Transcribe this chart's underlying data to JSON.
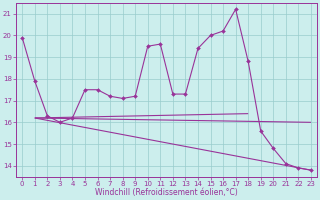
{
  "xlabel": "Windchill (Refroidissement éolien,°C)",
  "bg_color": "#cceeed",
  "line_color": "#993399",
  "grid_color": "#99cccc",
  "xlim": [
    -0.5,
    23.5
  ],
  "ylim": [
    13.5,
    21.5
  ],
  "yticks": [
    14,
    15,
    16,
    17,
    18,
    19,
    20,
    21
  ],
  "xticks": [
    0,
    1,
    2,
    3,
    4,
    5,
    6,
    7,
    8,
    9,
    10,
    11,
    12,
    13,
    14,
    15,
    16,
    17,
    18,
    19,
    20,
    21,
    22,
    23
  ],
  "main_series": {
    "x": [
      0,
      1,
      2,
      3,
      4,
      5,
      6,
      7,
      8,
      9,
      10,
      11,
      12,
      13,
      14,
      15,
      16,
      17,
      18,
      19,
      20,
      21,
      22,
      23
    ],
    "y": [
      19.9,
      17.9,
      16.3,
      16.0,
      16.2,
      17.5,
      17.5,
      17.2,
      17.1,
      17.2,
      19.5,
      19.6,
      17.3,
      17.3,
      19.4,
      20.0,
      20.2,
      21.2,
      18.8,
      15.6,
      14.8,
      14.1,
      13.9,
      13.8
    ]
  },
  "trend_lines": [
    {
      "x": [
        1,
        18
      ],
      "y": [
        16.2,
        16.4
      ]
    },
    {
      "x": [
        1,
        23
      ],
      "y": [
        16.2,
        16.0
      ]
    },
    {
      "x": [
        1,
        23
      ],
      "y": [
        16.2,
        13.8
      ]
    }
  ],
  "tick_fontsize": 5.0,
  "xlabel_fontsize": 5.5,
  "tick_color": "#993399",
  "label_color": "#993399",
  "linewidth": 0.8,
  "markersize": 2.0,
  "marker": "D"
}
